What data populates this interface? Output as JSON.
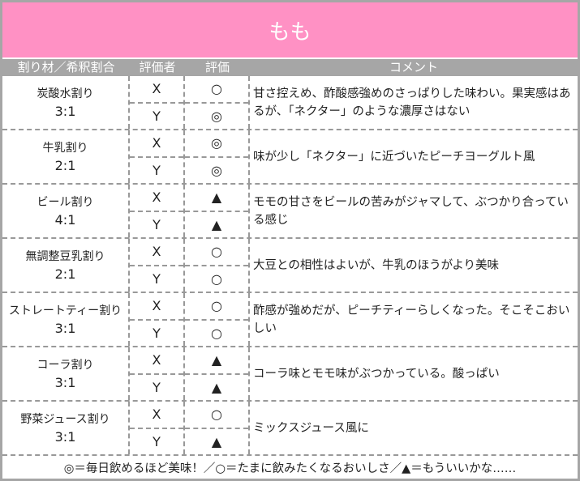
{
  "title": "もも",
  "headers": [
    "割り材／希釈割合",
    "評価者",
    "評価",
    "コメント"
  ],
  "rows": [
    {
      "name": "炭酸水割り",
      "ratio": "3:1",
      "x": "X",
      "xr": "○",
      "y": "Y",
      "yr": "◎",
      "comment": "甘さ控えめ、酢酸感強めのさっぱりした味わい。果実感はあるが、「ネクター」のような濃厚さはない"
    },
    {
      "name": "牛乳割り",
      "ratio": "2:1",
      "x": "X",
      "xr": "◎",
      "y": "Y",
      "yr": "◎",
      "comment": "味が少し「ネクター」に近づいたピーチヨーグルト風"
    },
    {
      "name": "ビール割り",
      "ratio": "4:1",
      "x": "X",
      "xr": "▲",
      "y": "Y",
      "yr": "▲",
      "comment": "モモの甘さをビールの苦みがジャマして、ぶつかり合っている感じ"
    },
    {
      "name": "無調整豆乳割り",
      "ratio": "2:1",
      "x": "X",
      "xr": "○",
      "y": "Y",
      "yr": "○",
      "comment": "大豆との相性はよいが、牛乳のほうがより美味"
    },
    {
      "name": "ストレートティー割り",
      "ratio": "3:1",
      "x": "X",
      "xr": "○",
      "y": "Y",
      "yr": "○",
      "comment": "酢感が強めだが、ピーチティーらしくなった。そこそこおいしい"
    },
    {
      "name": "コーラ割り",
      "ratio": "3:1",
      "x": "X",
      "xr": "▲",
      "y": "Y",
      "yr": "▲",
      "comment": "コーラ味とモモ味がぶつかっている。酸っぱい"
    },
    {
      "name": "野菜ジュース割り",
      "ratio": "3:1",
      "x": "X",
      "xr": "○",
      "y": "Y",
      "yr": "▲",
      "comment": "ミックスジュース風に"
    }
  ],
  "legend": "◎＝毎日飲めるほど美味！／○＝たまに飲みたくなるおいしさ／▲＝もういいかな……",
  "colors": {
    "title_bg": "#ff91c4",
    "header_bg": "#a6a6a6",
    "double_circle": "#e03030"
  }
}
